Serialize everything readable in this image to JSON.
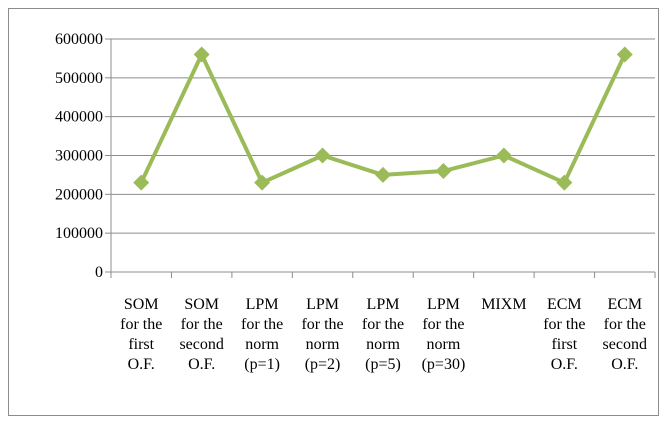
{
  "chart_data": {
    "type": "line",
    "title": "",
    "xlabel": "",
    "ylabel": "",
    "ylim": [
      0,
      600000
    ],
    "yticks": [
      0,
      100000,
      200000,
      300000,
      400000,
      500000,
      600000
    ],
    "ytick_labels": [
      "0",
      "100000",
      "200000",
      "300000",
      "400000",
      "500000",
      "600000"
    ],
    "grid": "horizontal",
    "legend": "none",
    "categories": [
      [
        "SOM",
        "for the",
        "first",
        "O.F."
      ],
      [
        "SOM",
        "for the",
        "second",
        "O.F."
      ],
      [
        "LPM",
        "for the",
        "norm",
        "(p=1)"
      ],
      [
        "LPM",
        "for the",
        "norm",
        "(p=2)"
      ],
      [
        "LPM",
        "for the",
        "norm",
        "(p=5)"
      ],
      [
        "LPM",
        "for the",
        "norm",
        "(p=30)"
      ],
      [
        "MIXM"
      ],
      [
        "ECM",
        "for the",
        "first",
        "O.F."
      ],
      [
        "ECM",
        "for the",
        "second",
        "O.F."
      ]
    ],
    "series": [
      {
        "values": [
          230000,
          560000,
          230000,
          300000,
          250000,
          260000,
          300000,
          230000,
          560000
        ],
        "color": "#9bbb59"
      }
    ],
    "colors": {
      "line": "#9bbb59",
      "marker": "#9bbb59",
      "grid": "#8c8c8c",
      "axis": "#8c8c8c"
    }
  }
}
